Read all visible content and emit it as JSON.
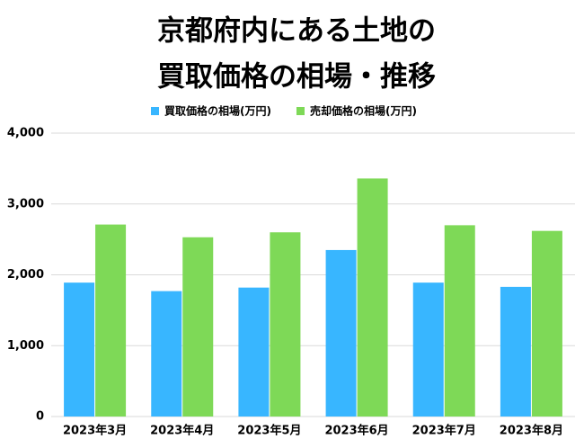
{
  "chart_data": {
    "type": "bar",
    "title": [
      "京都府内にある土地の",
      "買取価格の相場・推移"
    ],
    "categories": [
      "2023年3月",
      "2023年4月",
      "2023年5月",
      "2023年6月",
      "2023年7月",
      "2023年8月"
    ],
    "series": [
      {
        "name": "買取価格の相場(万円)",
        "color": "#38b6ff",
        "values": [
          1890,
          1770,
          1820,
          2350,
          1890,
          1830
        ]
      },
      {
        "name": "売却価格の相場(万円)",
        "color": "#7ed957",
        "values": [
          2710,
          2530,
          2600,
          3360,
          2700,
          2620
        ]
      }
    ],
    "ylim": [
      0,
      4000
    ],
    "yticks": [
      0,
      {
        "value": 1000,
        "label": "1,000"
      },
      {
        "value": 2000,
        "label": "2,000"
      },
      {
        "value": 3000,
        "label": "3,000"
      },
      {
        "value": 4000,
        "label": "4,000"
      }
    ],
    "grid": true,
    "legend": "top"
  }
}
